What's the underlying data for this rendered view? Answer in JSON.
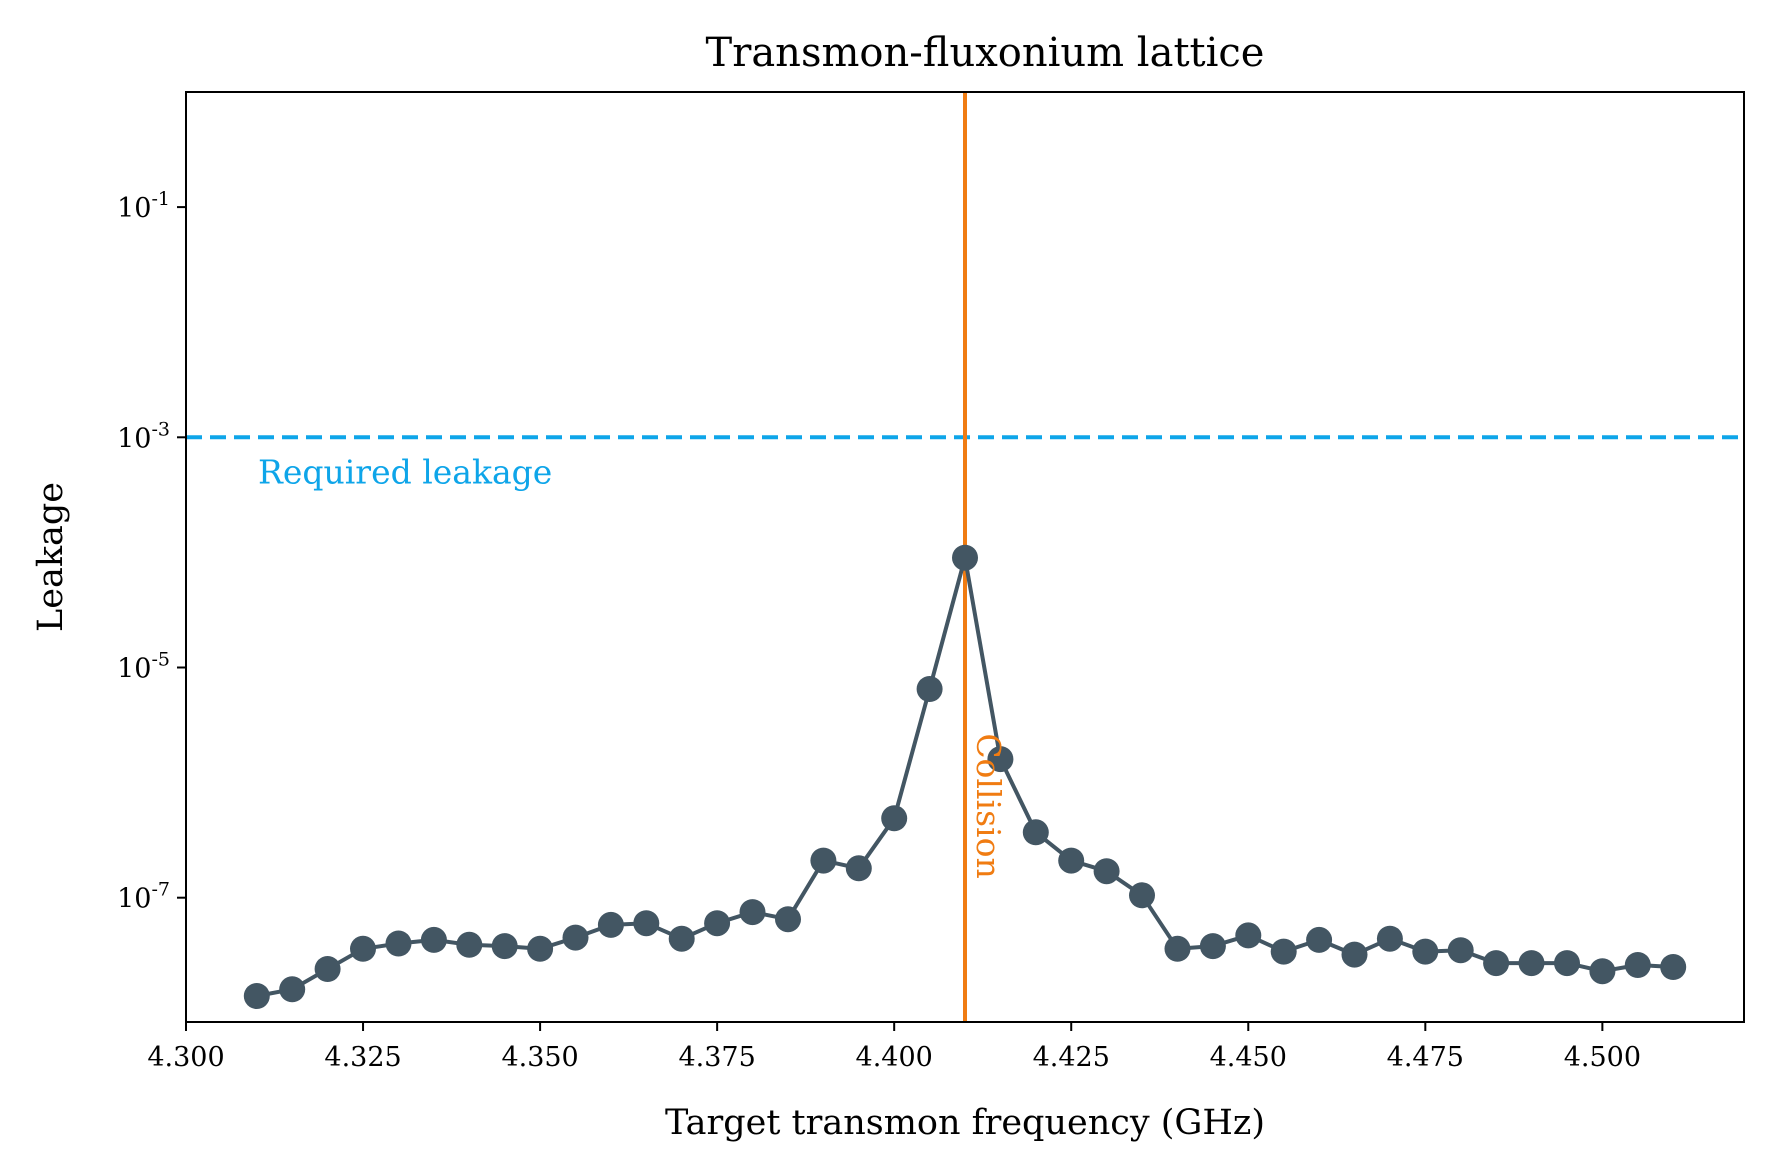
{
  "colors": {
    "series": "#435663",
    "threshold": "#0ea5e9",
    "collision": "#f07c12",
    "axis": "#000000",
    "background": "#ffffff"
  },
  "chart_data": {
    "type": "line",
    "title": "Transmon-fluxonium lattice",
    "xlabel": "Target transmon frequency (GHz)",
    "ylabel": "Leakage",
    "xlim": [
      4.3,
      4.52
    ],
    "ylim_log10": [
      -8.08,
      0.0
    ],
    "yscale": "log",
    "grid": false,
    "x_ticks": [
      4.3,
      4.325,
      4.35,
      4.375,
      4.4,
      4.425,
      4.45,
      4.475,
      4.5
    ],
    "x_tick_labels": [
      "4.300",
      "4.325",
      "4.350",
      "4.375",
      "4.400",
      "4.425",
      "4.450",
      "4.475",
      "4.500"
    ],
    "y_ticks": [
      {
        "value": 0.1,
        "base": "10",
        "exp": "-1"
      },
      {
        "value": 0.001,
        "base": "10",
        "exp": "-3"
      },
      {
        "value": 1e-05,
        "base": "10",
        "exp": "-5"
      },
      {
        "value": 1e-07,
        "base": "10",
        "exp": "-7"
      }
    ],
    "series": [
      {
        "x": [
          4.31,
          4.315,
          4.32,
          4.325,
          4.33,
          4.335,
          4.34,
          4.345,
          4.35,
          4.355,
          4.36,
          4.365,
          4.37,
          4.375,
          4.38,
          4.385,
          4.39,
          4.395,
          4.4,
          4.405,
          4.41,
          4.415,
          4.42,
          4.425,
          4.43,
          4.435,
          4.44,
          4.445,
          4.45,
          4.455,
          4.46,
          4.465,
          4.47,
          4.475,
          4.48,
          4.485,
          4.49,
          4.495,
          4.5,
          4.505,
          4.51
        ],
        "y": [
          1.4e-08,
          1.6e-08,
          2.4e-08,
          3.6e-08,
          4e-08,
          4.3e-08,
          3.9e-08,
          3.8e-08,
          3.6e-08,
          4.5e-08,
          5.8e-08,
          6e-08,
          4.4e-08,
          6e-08,
          7.5e-08,
          6.5e-08,
          2.1e-07,
          1.8e-07,
          4.9e-07,
          6.5e-06,
          9e-05,
          1.6e-06,
          3.7e-07,
          2.1e-07,
          1.7e-07,
          1.05e-07,
          3.6e-08,
          3.8e-08,
          4.7e-08,
          3.4e-08,
          4.3e-08,
          3.2e-08,
          4.4e-08,
          3.4e-08,
          3.5e-08,
          2.7e-08,
          2.7e-08,
          2.7e-08,
          2.3e-08,
          2.6e-08,
          2.5e-08
        ]
      }
    ],
    "threshold": {
      "y": 0.001,
      "label": "Required leakage"
    },
    "collision": {
      "x": 4.41,
      "label": "Collision"
    }
  }
}
